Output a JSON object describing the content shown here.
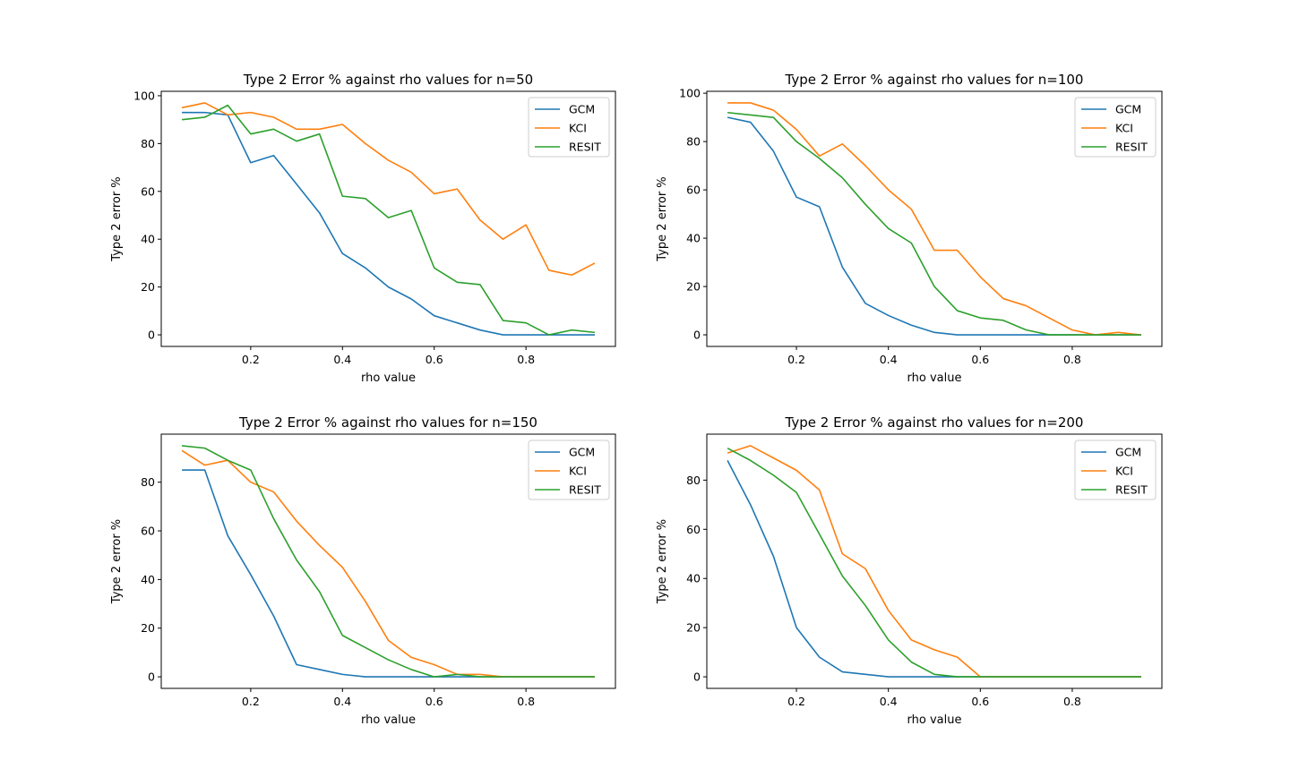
{
  "chart_data": [
    {
      "type": "line",
      "title": "Type 2 Error % against rho values for n=50",
      "xlabel": "rho value",
      "ylabel": "Type 2 error %",
      "xlim": [
        0.005,
        0.995
      ],
      "ylim": [
        -4.85,
        101.85
      ],
      "xticks": [
        "0.2",
        "0.4",
        "0.6",
        "0.8"
      ],
      "yticks": [
        "0",
        "20",
        "40",
        "60",
        "80",
        "100"
      ],
      "ytick_values": [
        0,
        20,
        40,
        60,
        80,
        100
      ],
      "legend": "top-right",
      "x": [
        0.05,
        0.1,
        0.15,
        0.2,
        0.25,
        0.3,
        0.35,
        0.4,
        0.45,
        0.5,
        0.55,
        0.6,
        0.65,
        0.7,
        0.75,
        0.8,
        0.85,
        0.9,
        0.95
      ],
      "series": [
        {
          "name": "GCM",
          "color": "#1f77b4",
          "values": [
            93,
            93,
            92,
            72,
            75,
            63,
            51,
            34,
            28,
            20,
            15,
            8,
            5,
            2,
            0,
            0,
            0,
            0,
            0
          ]
        },
        {
          "name": "KCI",
          "color": "#ff7f0e",
          "values": [
            95,
            97,
            92,
            93,
            91,
            86,
            86,
            88,
            80,
            73,
            68,
            59,
            61,
            48,
            40,
            46,
            27,
            25,
            30
          ]
        },
        {
          "name": "RESIT",
          "color": "#2ca02c",
          "values": [
            90,
            91,
            96,
            84,
            86,
            81,
            84,
            58,
            57,
            49,
            52,
            28,
            22,
            21,
            6,
            5,
            0,
            2,
            1
          ]
        }
      ]
    },
    {
      "type": "line",
      "title": "Type 2 Error % against rho values for n=100",
      "xlabel": "rho value",
      "ylabel": "Type 2 error %",
      "xlim": [
        0.005,
        0.995
      ],
      "ylim": [
        -4.8,
        100.8
      ],
      "xticks": [
        "0.2",
        "0.4",
        "0.6",
        "0.8"
      ],
      "yticks": [
        "0",
        "20",
        "40",
        "60",
        "80",
        "100"
      ],
      "ytick_values": [
        0,
        20,
        40,
        60,
        80,
        100
      ],
      "legend": "top-right",
      "x": [
        0.05,
        0.1,
        0.15,
        0.2,
        0.25,
        0.3,
        0.35,
        0.4,
        0.45,
        0.5,
        0.55,
        0.6,
        0.65,
        0.7,
        0.75,
        0.8,
        0.85,
        0.9,
        0.95
      ],
      "series": [
        {
          "name": "GCM",
          "color": "#1f77b4",
          "values": [
            90,
            88,
            76,
            57,
            53,
            28,
            13,
            8,
            4,
            1,
            0,
            0,
            0,
            0,
            0,
            0,
            0,
            0,
            0
          ]
        },
        {
          "name": "KCI",
          "color": "#ff7f0e",
          "values": [
            96,
            96,
            93,
            85,
            74,
            79,
            70,
            60,
            52,
            35,
            35,
            24,
            15,
            12,
            7,
            2,
            0,
            1,
            0
          ]
        },
        {
          "name": "RESIT",
          "color": "#2ca02c",
          "values": [
            92,
            91,
            90,
            80,
            73,
            65,
            54,
            44,
            38,
            20,
            10,
            7,
            6,
            2,
            0,
            0,
            0,
            0,
            0
          ]
        }
      ]
    },
    {
      "type": "line",
      "title": "Type 2 Error % against rho values for n=150",
      "xlabel": "rho value",
      "ylabel": "Type 2 error %",
      "xlim": [
        0.005,
        0.995
      ],
      "ylim": [
        -4.75,
        99.75
      ],
      "xticks": [
        "0.2",
        "0.4",
        "0.6",
        "0.8"
      ],
      "yticks": [
        "0",
        "20",
        "40",
        "60",
        "80"
      ],
      "ytick_values": [
        0,
        20,
        40,
        60,
        80
      ],
      "legend": "top-right",
      "x": [
        0.05,
        0.1,
        0.15,
        0.2,
        0.25,
        0.3,
        0.35,
        0.4,
        0.45,
        0.5,
        0.55,
        0.6,
        0.65,
        0.7,
        0.75,
        0.8,
        0.85,
        0.9,
        0.95
      ],
      "series": [
        {
          "name": "GCM",
          "color": "#1f77b4",
          "values": [
            85,
            85,
            58,
            42,
            25,
            5,
            3,
            1,
            0,
            0,
            0,
            0,
            0,
            0,
            0,
            0,
            0,
            0,
            0
          ]
        },
        {
          "name": "KCI",
          "color": "#ff7f0e",
          "values": [
            93,
            87,
            89,
            80,
            76,
            64,
            54,
            45,
            31,
            15,
            8,
            5,
            1,
            1,
            0,
            0,
            0,
            0,
            0
          ]
        },
        {
          "name": "RESIT",
          "color": "#2ca02c",
          "values": [
            95,
            94,
            89,
            85,
            65,
            48,
            35,
            17,
            12,
            7,
            3,
            0,
            1,
            0,
            0,
            0,
            0,
            0,
            0
          ]
        }
      ]
    },
    {
      "type": "line",
      "title": "Type 2 Error % against rho values for n=200",
      "xlabel": "rho value",
      "ylabel": "Type 2 error %",
      "xlim": [
        0.005,
        0.995
      ],
      "ylim": [
        -4.7,
        98.7
      ],
      "xticks": [
        "0.2",
        "0.4",
        "0.6",
        "0.8"
      ],
      "yticks": [
        "0",
        "20",
        "40",
        "60",
        "80"
      ],
      "ytick_values": [
        0,
        20,
        40,
        60,
        80
      ],
      "legend": "top-right",
      "x": [
        0.05,
        0.1,
        0.15,
        0.2,
        0.25,
        0.3,
        0.35,
        0.4,
        0.45,
        0.5,
        0.55,
        0.6,
        0.65,
        0.7,
        0.75,
        0.8,
        0.85,
        0.9,
        0.95
      ],
      "series": [
        {
          "name": "GCM",
          "color": "#1f77b4",
          "values": [
            88,
            70,
            49,
            20,
            8,
            2,
            1,
            0,
            0,
            0,
            0,
            0,
            0,
            0,
            0,
            0,
            0,
            0,
            0
          ]
        },
        {
          "name": "KCI",
          "color": "#ff7f0e",
          "values": [
            91,
            94,
            89,
            84,
            76,
            50,
            44,
            27,
            15,
            11,
            8,
            0,
            0,
            0,
            0,
            0,
            0,
            0,
            0
          ]
        },
        {
          "name": "RESIT",
          "color": "#2ca02c",
          "values": [
            93,
            88,
            82,
            75,
            58,
            41,
            29,
            15,
            6,
            1,
            0,
            0,
            0,
            0,
            0,
            0,
            0,
            0,
            0
          ]
        }
      ]
    }
  ]
}
